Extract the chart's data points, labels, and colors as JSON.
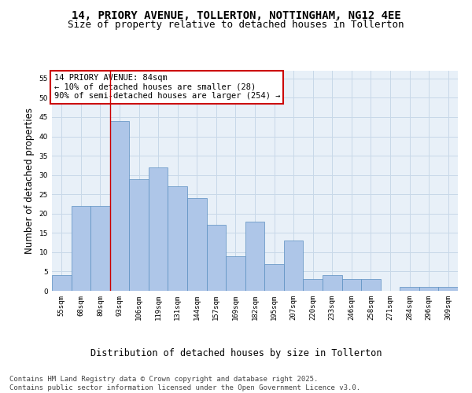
{
  "title_line1": "14, PRIORY AVENUE, TOLLERTON, NOTTINGHAM, NG12 4EE",
  "title_line2": "Size of property relative to detached houses in Tollerton",
  "xlabel": "Distribution of detached houses by size in Tollerton",
  "ylabel": "Number of detached properties",
  "categories": [
    "55sqm",
    "68sqm",
    "80sqm",
    "93sqm",
    "106sqm",
    "119sqm",
    "131sqm",
    "144sqm",
    "157sqm",
    "169sqm",
    "182sqm",
    "195sqm",
    "207sqm",
    "220sqm",
    "233sqm",
    "246sqm",
    "258sqm",
    "271sqm",
    "284sqm",
    "296sqm",
    "309sqm"
  ],
  "values": [
    4,
    22,
    22,
    44,
    29,
    32,
    27,
    24,
    17,
    9,
    18,
    7,
    13,
    3,
    4,
    3,
    3,
    0,
    1,
    1,
    1
  ],
  "bar_color": "#aec6e8",
  "bar_edge_color": "#5a8fc0",
  "grid_color": "#c8d8e8",
  "background_color": "#e8f0f8",
  "annotation_text": "14 PRIORY AVENUE: 84sqm\n← 10% of detached houses are smaller (28)\n90% of semi-detached houses are larger (254) →",
  "annotation_box_color": "#ffffff",
  "annotation_box_edge": "#cc0000",
  "vline_x_index": 2.5,
  "vline_color": "#cc0000",
  "ylim": [
    0,
    57
  ],
  "yticks": [
    0,
    5,
    10,
    15,
    20,
    25,
    30,
    35,
    40,
    45,
    50,
    55
  ],
  "footer_text": "Contains HM Land Registry data © Crown copyright and database right 2025.\nContains public sector information licensed under the Open Government Licence v3.0.",
  "title_fontsize": 10,
  "subtitle_fontsize": 9,
  "axis_label_fontsize": 8.5,
  "tick_fontsize": 6.5,
  "annotation_fontsize": 7.5,
  "footer_fontsize": 6.5
}
